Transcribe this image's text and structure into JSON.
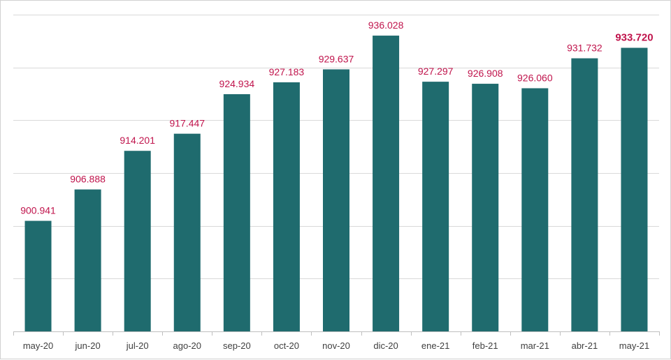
{
  "chart_data": {
    "type": "bar",
    "categories": [
      "may-20",
      "jun-20",
      "jul-20",
      "ago-20",
      "sep-20",
      "oct-20",
      "nov-20",
      "dic-20",
      "ene-21",
      "feb-21",
      "mar-21",
      "abr-21",
      "may-21"
    ],
    "values": [
      900.941,
      906.888,
      914.201,
      917.447,
      924.934,
      927.183,
      929.637,
      936.028,
      927.297,
      926.908,
      926.06,
      931.732,
      933.72
    ],
    "value_labels": [
      "900.941",
      "906.888",
      "914.201",
      "917.447",
      "924.934",
      "927.183",
      "929.637",
      "936.028",
      "927.297",
      "926.908",
      "926.060",
      "931.732",
      "933.720"
    ],
    "highlighted_index": 12,
    "ylim": [
      880,
      940
    ],
    "y_gridlines": [
      880,
      890,
      900,
      910,
      920,
      930,
      940
    ],
    "grid": true,
    "legend": "none",
    "colors": {
      "bar": "#1f6b6e",
      "label": "#c0144c"
    }
  }
}
